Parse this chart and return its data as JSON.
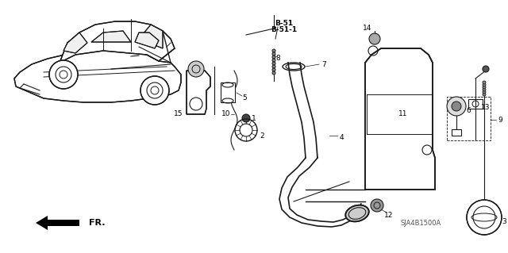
{
  "bg_color": "#ffffff",
  "line_color": "#1a1a1a",
  "diagram_code": "SJA4B1500A",
  "figsize": [
    6.4,
    3.19
  ],
  "dpi": 100,
  "b51_label": "B-51",
  "b511_label": "B-51-1",
  "fr_label": "FR.",
  "parts": [
    "1",
    "2",
    "3",
    "4",
    "5",
    "6",
    "7",
    "8",
    "9",
    "10",
    "11",
    "12",
    "13",
    "14",
    "15"
  ]
}
